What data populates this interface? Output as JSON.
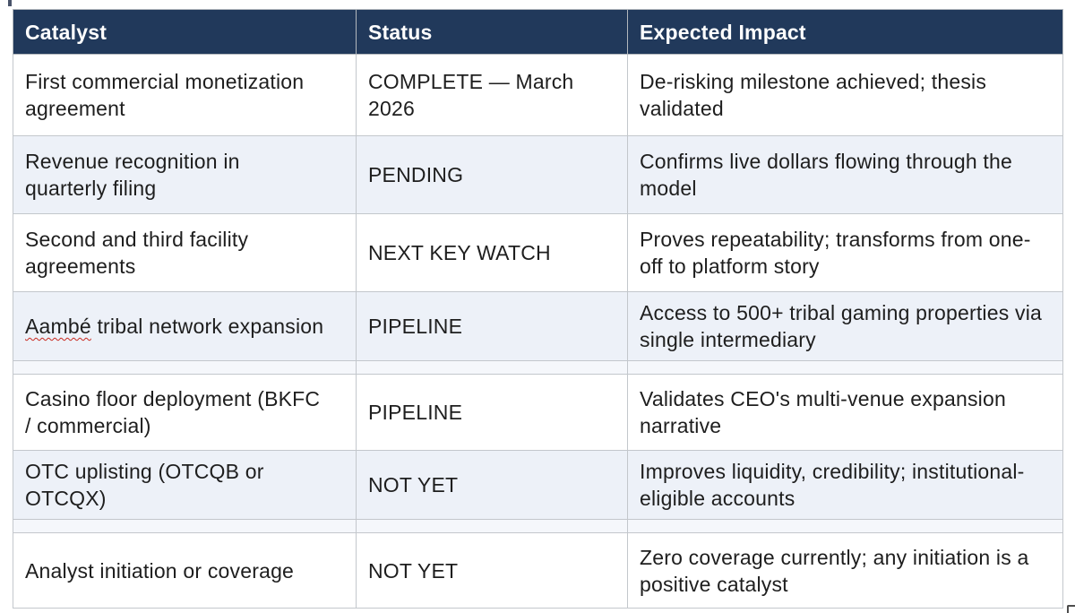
{
  "table": {
    "columns": [
      "Catalyst",
      "Status",
      "Expected Impact"
    ],
    "rows": [
      {
        "catalyst": "First commercial monetization agreement",
        "status": "COMPLETE — March 2026",
        "impact": "De-risking milestone achieved; thesis validated"
      },
      {
        "catalyst": "Revenue recognition in quarterly filing",
        "status": "PENDING",
        "impact": "Confirms live dollars flowing through the model"
      },
      {
        "catalyst": "Second and third facility agreements",
        "status": "NEXT KEY WATCH",
        "impact": "Proves repeatability; transforms from one-off to platform story"
      },
      {
        "catalyst_misspelled_word": "Aambé",
        "catalyst_rest": " tribal network expansion",
        "status": "PIPELINE",
        "impact": "Access to 500+ tribal gaming properties via single intermediary"
      },
      {
        "catalyst": "Casino floor deployment (BKFC / commercial)",
        "status": "PIPELINE",
        "impact": "Validates CEO's multi-venue expansion narrative"
      },
      {
        "catalyst": "OTC uplisting (OTCQB or OTCQX)",
        "status": "NOT YET",
        "impact": "Improves liquidity, credibility; institutional-eligible accounts"
      },
      {
        "catalyst": "Analyst initiation or coverage",
        "status": "NOT YET",
        "impact": "Zero coverage currently; any initiation is a positive catalyst"
      }
    ],
    "colors": {
      "header_bg": "#21395b",
      "header_text": "#ffffff",
      "body_text": "#1e1e1e",
      "alt_row_bg": "#edf1f8",
      "spacer_row_bg": "#f5f7fb",
      "border": "#c3c7cc",
      "spellcheck_underline": "#c8281e"
    }
  }
}
